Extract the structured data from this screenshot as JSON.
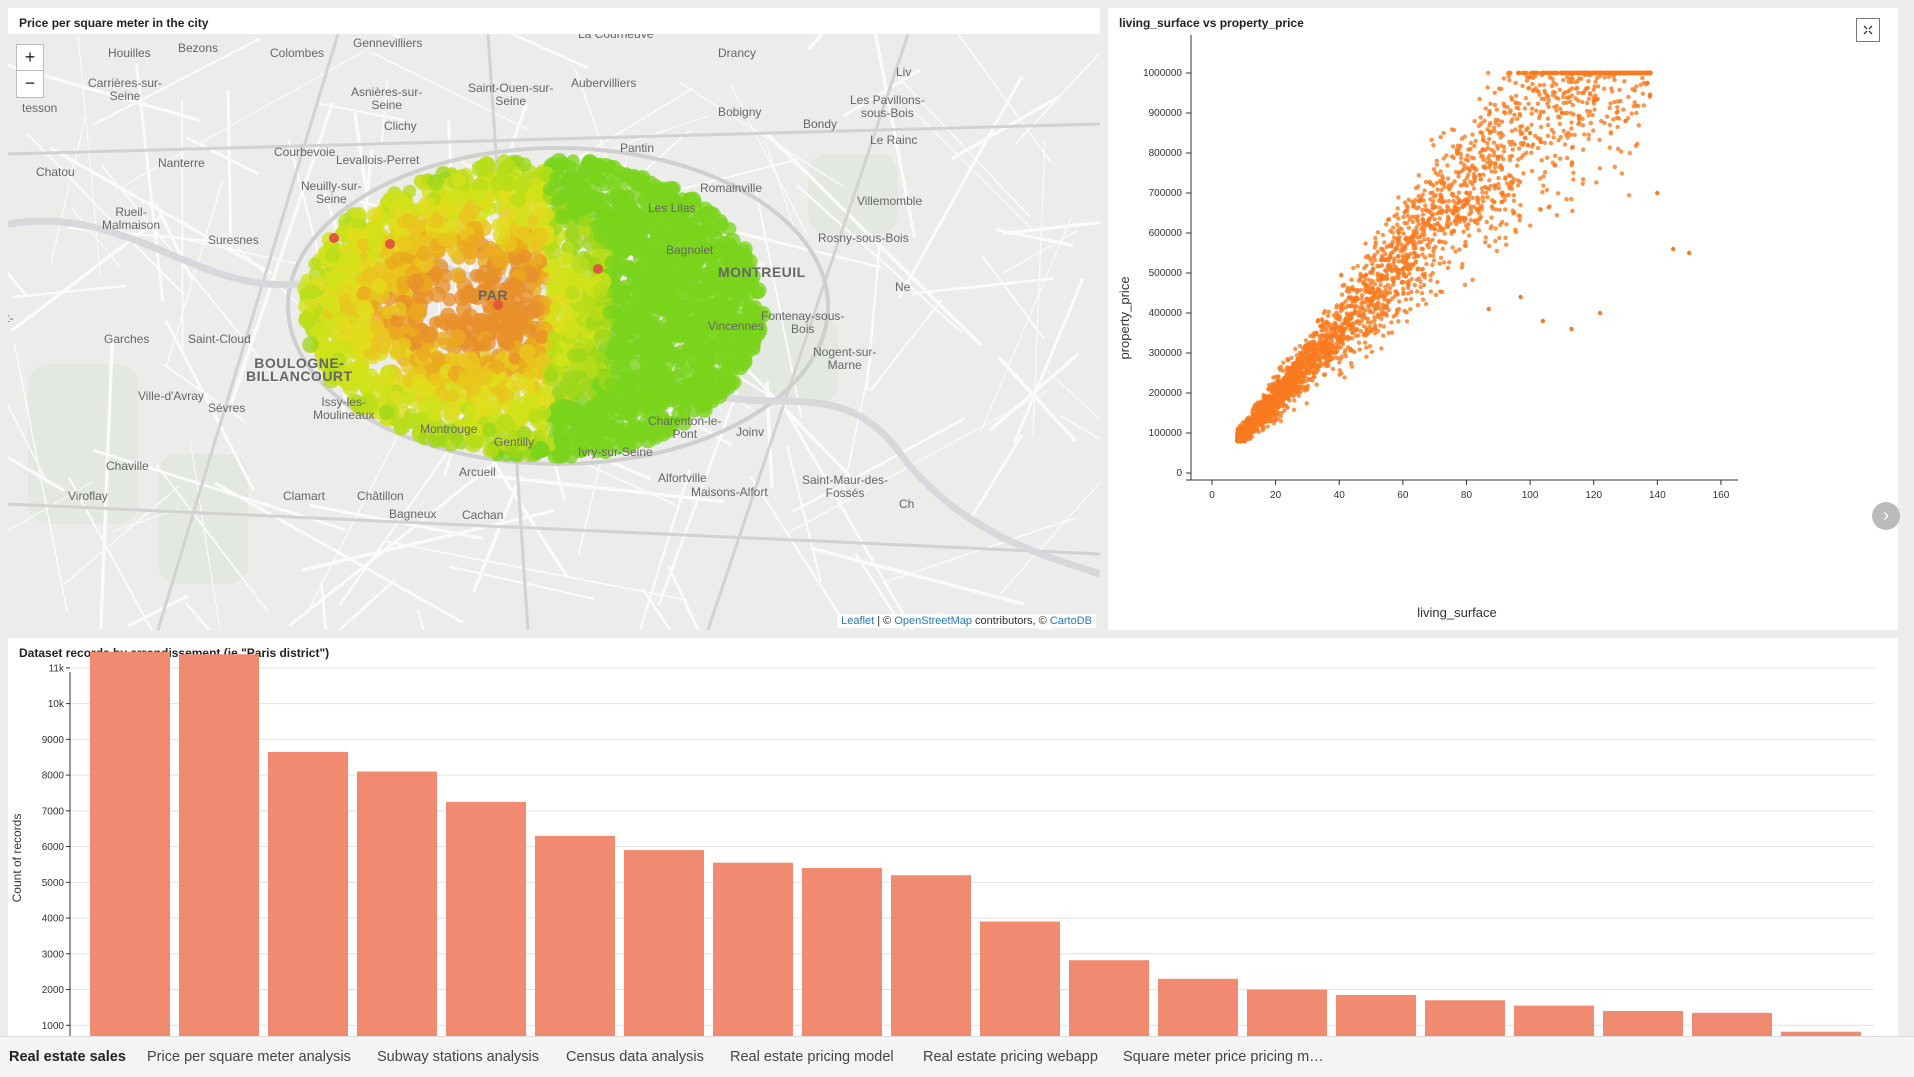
{
  "map_panel": {
    "title": "Price per square meter in the city",
    "zoom_in": "+",
    "zoom_out": "−",
    "attribution": {
      "leaflet": "Leaflet",
      "sep": " | © ",
      "osm": "OpenStreetMap",
      "contrib": " contributors, © ",
      "carto": "CartoDB"
    },
    "labels": [
      "Bezons",
      "Gennevilliers",
      "La Courneuve",
      "Drancy",
      "Houilles",
      "Colombes",
      "Carrières-sur-\nSeine",
      "Asnières-sur-\nSeine",
      "Saint-Ouen-sur-\nSeine",
      "Aubervilliers",
      "Liv",
      "tesson",
      "Bobigny",
      "Les Pavillons-\nsous-Bois",
      "Clichy",
      "Bondy",
      "Le Rainc",
      "Courbevoie",
      "Pantin",
      "Chatou",
      "Nanterre",
      "Levallois-Perret",
      "Neuilly-sur-\nSeine",
      "Romainville",
      "Villemomble",
      "Les Lilas",
      "Rueil-\nMalmaison",
      "Suresnes",
      "Bagnolet",
      "Rosny-sous-Bois",
      "MONTREUIL",
      "Ne",
      "PAR",
      "Vincennes",
      "Fontenay-sous-\nBois",
      "Garches",
      "Saint-Cloud",
      "Nogent-sur-\nMarne",
      "BOULOGNE-\nBILLANCOURT",
      "Ville-d'Avray",
      "Sèvres",
      "Issy-les-\nMoulineaux",
      "Charenton-le-\nPont",
      "Joinv",
      "Montrouge",
      "Gentilly",
      "Ivry-sur-Seine",
      "Chaville",
      "Arcueil",
      "Alfortville",
      "Saint-Maur-des-\nFossés",
      "Maisons-Alfort",
      "Viroflay",
      "Clamart",
      "Châtillon",
      "Bagneux",
      "Cachan",
      "Ch",
      "t-"
    ]
  },
  "scatter_panel": {
    "title": "living_surface vs property_price"
  },
  "bar_panel": {
    "title": "Dataset records by arrondissement (ie \"Paris district\")"
  },
  "chart_data": [
    {
      "type": "scatter",
      "title": "living_surface vs property_price",
      "xlabel": "living_surface",
      "ylabel": "property_price",
      "xlim": [
        -10,
        165
      ],
      "ylim": [
        0,
        1000000
      ],
      "x_ticks": [
        0,
        20,
        40,
        60,
        80,
        100,
        120,
        140,
        160
      ],
      "y_ticks": [
        0,
        100000,
        200000,
        300000,
        400000,
        500000,
        600000,
        700000,
        800000,
        900000,
        1000000
      ],
      "color": "#f97a1f",
      "points_note": "dense orange scatter; price rises roughly linearly with surface, capped at 1000000",
      "sample_points": [
        [
          10,
          95000
        ],
        [
          20,
          170000
        ],
        [
          30,
          260000
        ],
        [
          40,
          340000
        ],
        [
          50,
          430000
        ],
        [
          60,
          510000
        ],
        [
          70,
          610000
        ],
        [
          80,
          700000
        ],
        [
          90,
          790000
        ],
        [
          100,
          850000
        ],
        [
          110,
          900000
        ],
        [
          120,
          930000
        ],
        [
          130,
          880000
        ],
        [
          140,
          700000
        ],
        [
          145,
          560000
        ],
        [
          150,
          550000
        ],
        [
          87,
          410000
        ],
        [
          97,
          440000
        ],
        [
          104,
          380000
        ],
        [
          113,
          360000
        ],
        [
          122,
          400000
        ]
      ]
    },
    {
      "type": "bar",
      "title": "Dataset records by arrondissement (ie \"Paris district\")",
      "xlabel": "",
      "ylabel": "Count of records",
      "ylim": [
        700,
        11500
      ],
      "y_ticks": [
        1000,
        2000,
        3000,
        4000,
        5000,
        6000,
        7000,
        8000,
        9000,
        10000,
        11000
      ],
      "y_tick_labels": [
        "1000",
        "2000",
        "3000",
        "4000",
        "5000",
        "6000",
        "7000",
        "8000",
        "9000",
        "10k",
        "11k"
      ],
      "color": "#f08a70",
      "values": [
        11450,
        11380,
        8650,
        8100,
        7250,
        6300,
        5900,
        5550,
        5400,
        5200,
        3900,
        2820,
        2300,
        2000,
        1850,
        1700,
        1550,
        1400,
        1350,
        820
      ]
    }
  ],
  "tabs": [
    {
      "label": "Real estate sales",
      "active": true
    },
    {
      "label": "Price per square meter analysis"
    },
    {
      "label": "Subway stations analysis"
    },
    {
      "label": "Census data analysis"
    },
    {
      "label": "Real estate pricing model"
    },
    {
      "label": "Real estate pricing webapp"
    },
    {
      "label": "Square meter price pricing m…"
    }
  ]
}
